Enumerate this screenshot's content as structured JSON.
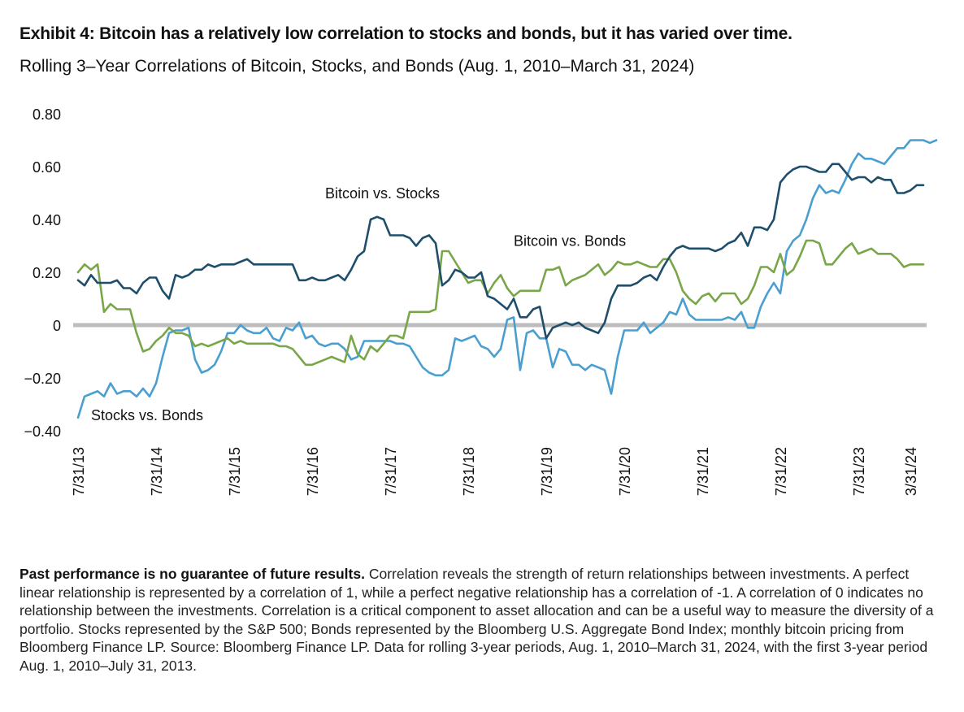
{
  "header": {
    "title": "Exhibit 4: Bitcoin has a relatively low correlation to stocks and bonds, but it has varied over time.",
    "subtitle": "Rolling 3–Year Correlations of Bitcoin, Stocks, and Bonds (Aug. 1, 2010–March 31, 2024)"
  },
  "colors": {
    "bitcoin_vs_stocks": "#1f4e6b",
    "stocks_vs_bonds": "#4a9fd0",
    "bitcoin_vs_bonds": "#7aa64a",
    "zero_line": "#bdbdbd"
  },
  "chart_data": {
    "type": "line",
    "title": "Rolling 3–Year Correlations of Bitcoin, Stocks, and Bonds (Aug. 1, 2010–March 31, 2024)",
    "xlabel": "",
    "ylabel": "",
    "ylim": [
      -0.4,
      0.8
    ],
    "yticks": [
      0.8,
      0.6,
      0.4,
      0.2,
      0,
      -0.2,
      -0.4
    ],
    "ytick_labels": [
      "0.80",
      "0.60",
      "0.40",
      "0.20",
      "0",
      "−0.20",
      "−0.40"
    ],
    "x_start": "2013-07",
    "x_end": "2024-03",
    "frequency": "monthly",
    "xtick_labels": [
      "7/31/13",
      "7/31/14",
      "7/31/15",
      "7/31/16",
      "7/31/17",
      "7/31/18",
      "7/31/19",
      "7/31/20",
      "7/31/21",
      "7/31/22",
      "7/31/23",
      "3/31/24"
    ],
    "xtick_month_index": [
      0,
      12,
      24,
      36,
      48,
      60,
      72,
      84,
      96,
      108,
      120,
      128
    ],
    "grid": false,
    "zero_line": true,
    "legend": "inline-annotations",
    "series": [
      {
        "name": "Bitcoin vs. Stocks",
        "color_key": "bitcoin_vs_stocks",
        "label_anchor": {
          "month_index": 38,
          "value": 0.48
        },
        "values": [
          0.17,
          0.15,
          0.19,
          0.16,
          0.16,
          0.16,
          0.17,
          0.14,
          0.14,
          0.12,
          0.16,
          0.18,
          0.18,
          0.13,
          0.1,
          0.19,
          0.18,
          0.19,
          0.21,
          0.21,
          0.23,
          0.22,
          0.23,
          0.23,
          0.23,
          0.24,
          0.25,
          0.23,
          0.23,
          0.23,
          0.23,
          0.23,
          0.23,
          0.23,
          0.17,
          0.17,
          0.18,
          0.17,
          0.17,
          0.18,
          0.19,
          0.17,
          0.21,
          0.26,
          0.28,
          0.4,
          0.41,
          0.4,
          0.34,
          0.34,
          0.34,
          0.33,
          0.3,
          0.33,
          0.34,
          0.31,
          0.15,
          0.17,
          0.21,
          0.2,
          0.18,
          0.18,
          0.2,
          0.11,
          0.1,
          0.08,
          0.06,
          0.1,
          0.03,
          0.03,
          0.06,
          0.07,
          -0.05,
          -0.01,
          0.0,
          0.01,
          0.0,
          0.01,
          -0.01,
          -0.02,
          -0.03,
          0.01,
          0.1,
          0.15,
          0.15,
          0.15,
          0.16,
          0.18,
          0.19,
          0.17,
          0.22,
          0.26,
          0.29,
          0.3,
          0.29,
          0.29,
          0.29,
          0.29,
          0.28,
          0.29,
          0.31,
          0.32,
          0.35,
          0.3,
          0.37,
          0.37,
          0.36,
          0.4,
          0.54,
          0.57,
          0.59,
          0.6,
          0.6,
          0.59,
          0.58,
          0.58,
          0.61,
          0.61,
          0.58,
          0.55,
          0.56,
          0.56,
          0.54,
          0.56,
          0.55,
          0.55,
          0.5,
          0.5,
          0.51,
          0.53,
          0.53
        ]
      },
      {
        "name": "Bitcoin vs. Bonds",
        "color_key": "bitcoin_vs_bonds",
        "label_anchor": {
          "month_index": 67,
          "value": 0.3
        },
        "values": [
          0.2,
          0.23,
          0.21,
          0.23,
          0.05,
          0.08,
          0.06,
          0.06,
          0.06,
          -0.03,
          -0.1,
          -0.09,
          -0.06,
          -0.04,
          -0.01,
          -0.03,
          -0.03,
          -0.04,
          -0.08,
          -0.07,
          -0.08,
          -0.07,
          -0.06,
          -0.05,
          -0.07,
          -0.06,
          -0.07,
          -0.07,
          -0.07,
          -0.07,
          -0.07,
          -0.08,
          -0.08,
          -0.09,
          -0.12,
          -0.15,
          -0.15,
          -0.14,
          -0.13,
          -0.12,
          -0.13,
          -0.14,
          -0.04,
          -0.11,
          -0.13,
          -0.08,
          -0.1,
          -0.07,
          -0.04,
          -0.04,
          -0.05,
          0.05,
          0.05,
          0.05,
          0.05,
          0.06,
          0.28,
          0.28,
          0.24,
          0.2,
          0.16,
          0.17,
          0.17,
          0.12,
          0.16,
          0.19,
          0.14,
          0.11,
          0.13,
          0.13,
          0.13,
          0.13,
          0.21,
          0.21,
          0.22,
          0.15,
          0.17,
          0.18,
          0.19,
          0.21,
          0.23,
          0.19,
          0.21,
          0.24,
          0.23,
          0.23,
          0.24,
          0.23,
          0.22,
          0.22,
          0.25,
          0.25,
          0.2,
          0.13,
          0.1,
          0.08,
          0.11,
          0.12,
          0.09,
          0.12,
          0.12,
          0.12,
          0.08,
          0.1,
          0.15,
          0.22,
          0.22,
          0.2,
          0.27,
          0.19,
          0.21,
          0.26,
          0.32,
          0.32,
          0.31,
          0.23,
          0.23,
          0.26,
          0.29,
          0.31,
          0.27,
          0.28,
          0.29,
          0.27,
          0.27,
          0.27,
          0.25,
          0.22,
          0.23,
          0.23,
          0.23
        ]
      },
      {
        "name": "Stocks vs. Bonds",
        "color_key": "stocks_vs_bonds",
        "label_anchor": {
          "month_index": 2,
          "value": -0.36
        },
        "values": [
          -0.35,
          -0.27,
          -0.26,
          -0.25,
          -0.27,
          -0.22,
          -0.26,
          -0.25,
          -0.25,
          -0.27,
          -0.24,
          -0.27,
          -0.22,
          -0.12,
          -0.03,
          -0.02,
          -0.02,
          -0.01,
          -0.13,
          -0.18,
          -0.17,
          -0.15,
          -0.1,
          -0.03,
          -0.03,
          0.0,
          -0.02,
          -0.03,
          -0.03,
          -0.01,
          -0.05,
          -0.06,
          -0.01,
          -0.02,
          0.01,
          -0.05,
          -0.04,
          -0.07,
          -0.08,
          -0.07,
          -0.07,
          -0.09,
          -0.13,
          -0.12,
          -0.06,
          -0.06,
          -0.06,
          -0.06,
          -0.06,
          -0.07,
          -0.07,
          -0.08,
          -0.12,
          -0.16,
          -0.18,
          -0.19,
          -0.19,
          -0.17,
          -0.05,
          -0.06,
          -0.05,
          -0.04,
          -0.08,
          -0.09,
          -0.12,
          -0.09,
          0.02,
          0.03,
          -0.17,
          -0.03,
          -0.02,
          -0.05,
          -0.05,
          -0.16,
          -0.09,
          -0.1,
          -0.15,
          -0.15,
          -0.17,
          -0.15,
          -0.16,
          -0.17,
          -0.26,
          -0.12,
          -0.02,
          -0.02,
          -0.02,
          0.01,
          -0.03,
          -0.01,
          0.01,
          0.05,
          0.04,
          0.1,
          0.04,
          0.02,
          0.02,
          0.02,
          0.02,
          0.02,
          0.03,
          0.02,
          0.05,
          -0.01,
          -0.01,
          0.07,
          0.12,
          0.16,
          0.12,
          0.28,
          0.32,
          0.34,
          0.4,
          0.48,
          0.53,
          0.5,
          0.51,
          0.5,
          0.55,
          0.61,
          0.65,
          0.63,
          0.63,
          0.62,
          0.61,
          0.64,
          0.67,
          0.67,
          0.7,
          0.7,
          0.7,
          0.69,
          0.7
        ]
      }
    ]
  },
  "footnote": {
    "bold": "Past performance is no guarantee of future results.",
    "text": " Correlation reveals the strength of return relationships between investments. A perfect linear relationship is represented by a correlation of 1, while a perfect negative relationship has a correlation of -1. A correlation of 0 indicates no relationship between the investments. Correlation is a critical component to asset allocation and can be a useful way to measure the diversity of a portfolio. Stocks represented by the S&P 500; Bonds represented by the Bloomberg U.S. Aggregate Bond Index; monthly bitcoin pricing from Bloomberg Finance LP. Source: Bloomberg Finance LP. Data for rolling 3-year periods, Aug. 1, 2010–March 31, 2024, with the first 3-year period Aug. 1, 2010–July 31, 2013."
  }
}
